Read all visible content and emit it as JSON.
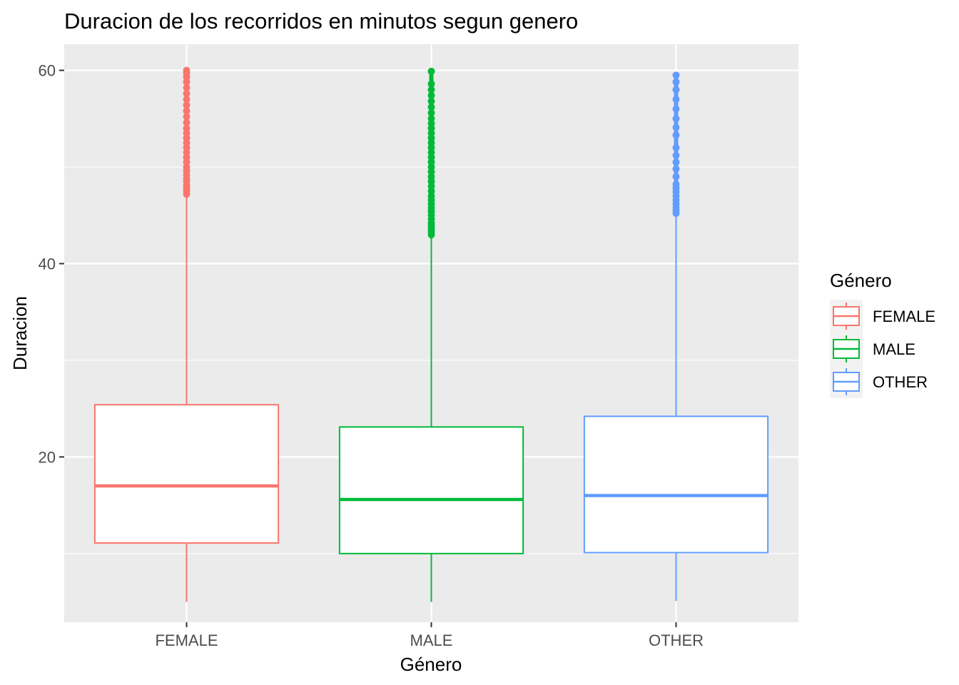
{
  "chart_data": {
    "type": "boxplot",
    "title": "Duracion de los recorridos en minutos segun genero",
    "xlabel": "Género",
    "ylabel": "Duracion",
    "ylim": [
      2.9,
      62.7
    ],
    "y_ticks": [
      20,
      40,
      60
    ],
    "y_minor_ticks": [
      10,
      30,
      50
    ],
    "categories": [
      "FEMALE",
      "MALE",
      "OTHER"
    ],
    "grid": true,
    "background": "#ebebeb",
    "legend": {
      "title": "Género",
      "position": "right",
      "entries": [
        "FEMALE",
        "MALE",
        "OTHER"
      ]
    },
    "series": [
      {
        "category": "FEMALE",
        "color": "#f8766d",
        "whisker_low": 5.0,
        "q1": 11.1,
        "median": 17.0,
        "q3": 25.4,
        "whisker_high": 47.0,
        "outlier_range": [
          47.0,
          60.0
        ],
        "outliers": [
          47.2,
          47.5,
          47.8,
          48.1,
          48.5,
          48.8,
          49.2,
          49.6,
          50.0,
          50.5,
          51.0,
          51.5,
          52.0,
          52.5,
          53.0,
          53.5,
          54.0,
          54.6,
          55.2,
          55.8,
          56.4,
          57.0,
          57.6,
          58.2,
          58.8,
          59.3,
          59.7,
          60.0
        ]
      },
      {
        "category": "MALE",
        "color": "#00ba38",
        "whisker_low": 5.0,
        "q1": 10.0,
        "median": 15.6,
        "q3": 23.1,
        "whisker_high": 42.8,
        "outlier_range": [
          42.8,
          59.9
        ],
        "outliers": [
          43.0,
          43.3,
          43.6,
          43.9,
          44.2,
          44.6,
          45.0,
          45.4,
          45.8,
          46.2,
          46.6,
          47.0,
          47.5,
          48.0,
          48.5,
          49.0,
          49.5,
          50.0,
          50.5,
          51.0,
          51.5,
          52.0,
          52.5,
          53.0,
          53.5,
          54.0,
          54.5,
          55.0,
          55.6,
          56.2,
          56.8,
          57.4,
          58.0,
          58.6,
          59.9
        ]
      },
      {
        "category": "OTHER",
        "color": "#619cff",
        "whisker_low": 5.1,
        "q1": 10.1,
        "median": 16.0,
        "q3": 24.2,
        "whisker_high": 45.0,
        "outlier_range": [
          45.1,
          59.5
        ],
        "outliers": [
          45.2,
          45.5,
          45.8,
          46.2,
          46.6,
          47.0,
          47.4,
          47.8,
          48.2,
          49.0,
          49.8,
          50.5,
          51.2,
          52.0,
          53.3,
          54.1,
          55.0,
          56.0,
          57.0,
          58.0,
          58.8,
          59.5
        ]
      }
    ]
  }
}
